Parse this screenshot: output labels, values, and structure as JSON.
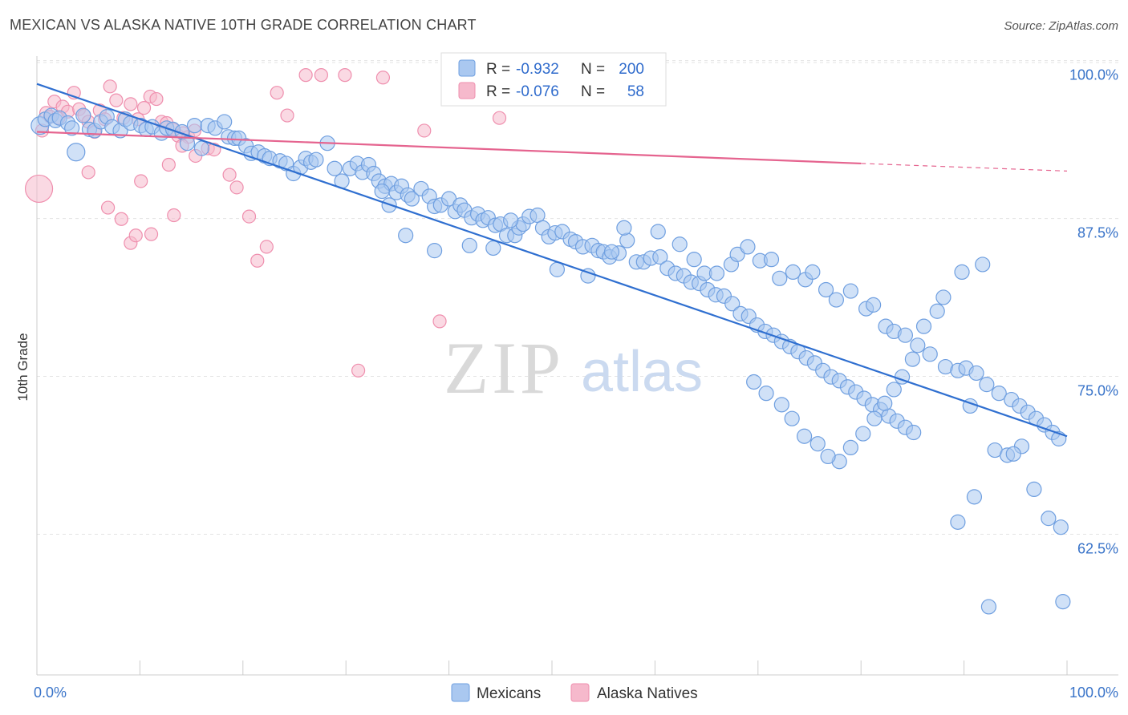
{
  "header": {
    "title": "MEXICAN VS ALASKA NATIVE 10TH GRADE CORRELATION CHART",
    "source": "Source: ZipAtlas.com"
  },
  "watermark": {
    "zip": "ZIP",
    "atlas": "atlas"
  },
  "legend": {
    "rows": [
      {
        "r_label": "R =",
        "r_value": "-0.932",
        "n_label": "N =",
        "n_value": "200",
        "color": "#aac8f0"
      },
      {
        "r_label": "R =",
        "r_value": "-0.076",
        "n_label": "N =",
        "n_value": "58",
        "color": "#f6b9cc"
      }
    ]
  },
  "bottom_legend": [
    {
      "label": "Mexicans",
      "color": "#aac8f0"
    },
    {
      "label": "Alaska Natives",
      "color": "#f6b9cc"
    }
  ],
  "chart_data": {
    "type": "scatter",
    "title": "MEXICAN VS ALASKA NATIVE 10TH GRADE CORRELATION CHART",
    "xlabel": "",
    "ylabel": "10th Grade",
    "xlim": [
      0,
      100
    ],
    "ylim": [
      52.5,
      101.5
    ],
    "x_tick_labels": [
      "0.0%",
      "100.0%"
    ],
    "y_ticks": [
      62.5,
      75.0,
      87.5,
      100.0
    ],
    "y_tick_labels": [
      "62.5%",
      "75.0%",
      "87.5%",
      "100.0%"
    ],
    "grid": true,
    "legend_position": "top-center",
    "colors": {
      "mexicans": "#6f9fe0",
      "mexicans_fill": "#aac8f0",
      "mexicans_line": "#2f6fd0",
      "alaska": "#ef8fae",
      "alaska_fill": "#f6b9cc",
      "alaska_line": "#e5648f"
    },
    "series": [
      {
        "name": "Mexicans",
        "r": -0.932,
        "n": 200,
        "trend": {
          "x": [
            0,
            100
          ],
          "y": [
            99.3,
            71.4
          ]
        },
        "points": [
          [
            0.3,
            96.0
          ],
          [
            0.8,
            96.5
          ],
          [
            1.4,
            96.8
          ],
          [
            1.8,
            96.4
          ],
          [
            2.2,
            96.6
          ],
          [
            3.0,
            96.2
          ],
          [
            3.4,
            95.8
          ],
          [
            3.8,
            93.9
          ],
          [
            4.5,
            96.8
          ],
          [
            5.1,
            95.7
          ],
          [
            5.6,
            95.6
          ],
          [
            6.2,
            96.3
          ],
          [
            6.8,
            96.7
          ],
          [
            7.3,
            95.9
          ],
          [
            8.1,
            95.6
          ],
          [
            8.6,
            96.5
          ],
          [
            9.1,
            96.2
          ],
          [
            10.1,
            96.0
          ],
          [
            10.6,
            95.7
          ],
          [
            11.2,
            95.9
          ],
          [
            12.1,
            95.4
          ],
          [
            12.6,
            95.8
          ],
          [
            13.2,
            95.7
          ],
          [
            14.1,
            95.5
          ],
          [
            14.6,
            94.6
          ],
          [
            15.3,
            96.0
          ],
          [
            16.0,
            94.2
          ],
          [
            16.6,
            96.0
          ],
          [
            17.3,
            95.8
          ],
          [
            18.2,
            96.3
          ],
          [
            18.6,
            95.1
          ],
          [
            19.2,
            95.0
          ],
          [
            19.6,
            95.0
          ],
          [
            20.3,
            94.4
          ],
          [
            20.8,
            93.8
          ],
          [
            21.5,
            93.9
          ],
          [
            22.1,
            93.6
          ],
          [
            22.6,
            93.4
          ],
          [
            23.6,
            93.2
          ],
          [
            24.2,
            93.0
          ],
          [
            24.9,
            92.2
          ],
          [
            25.6,
            92.7
          ],
          [
            26.1,
            93.4
          ],
          [
            26.6,
            93.1
          ],
          [
            27.1,
            93.3
          ],
          [
            28.2,
            94.6
          ],
          [
            28.9,
            92.6
          ],
          [
            29.6,
            91.6
          ],
          [
            30.4,
            92.6
          ],
          [
            31.1,
            93.0
          ],
          [
            31.6,
            92.3
          ],
          [
            32.2,
            92.9
          ],
          [
            32.7,
            92.2
          ],
          [
            33.2,
            91.6
          ],
          [
            33.8,
            91.2
          ],
          [
            34.4,
            91.4
          ],
          [
            34.9,
            90.7
          ],
          [
            35.4,
            91.2
          ],
          [
            36.0,
            90.5
          ],
          [
            36.4,
            90.2
          ],
          [
            37.3,
            91.0
          ],
          [
            38.1,
            90.4
          ],
          [
            38.6,
            89.6
          ],
          [
            39.2,
            89.7
          ],
          [
            40.0,
            90.2
          ],
          [
            40.6,
            89.2
          ],
          [
            41.1,
            89.7
          ],
          [
            41.5,
            89.3
          ],
          [
            42.2,
            88.7
          ],
          [
            42.8,
            89.0
          ],
          [
            43.3,
            88.5
          ],
          [
            43.8,
            88.7
          ],
          [
            44.5,
            88.1
          ],
          [
            45.0,
            88.2
          ],
          [
            45.6,
            87.3
          ],
          [
            46.4,
            87.3
          ],
          [
            46.8,
            87.9
          ],
          [
            47.2,
            88.2
          ],
          [
            47.8,
            88.8
          ],
          [
            48.6,
            88.9
          ],
          [
            49.1,
            87.9
          ],
          [
            49.7,
            87.2
          ],
          [
            50.3,
            87.5
          ],
          [
            51.0,
            87.6
          ],
          [
            51.8,
            87.0
          ],
          [
            52.3,
            86.8
          ],
          [
            53.0,
            86.4
          ],
          [
            53.9,
            86.5
          ],
          [
            54.5,
            86.1
          ],
          [
            55.0,
            86.0
          ],
          [
            55.6,
            85.6
          ],
          [
            56.5,
            85.9
          ],
          [
            57.3,
            86.9
          ],
          [
            58.2,
            85.2
          ],
          [
            58.9,
            85.2
          ],
          [
            59.6,
            85.5
          ],
          [
            60.5,
            85.6
          ],
          [
            61.2,
            84.7
          ],
          [
            62.0,
            84.3
          ],
          [
            62.8,
            84.1
          ],
          [
            63.5,
            83.6
          ],
          [
            64.3,
            83.5
          ],
          [
            65.1,
            83.0
          ],
          [
            65.9,
            82.6
          ],
          [
            66.7,
            82.5
          ],
          [
            67.5,
            81.9
          ],
          [
            68.3,
            81.1
          ],
          [
            69.1,
            80.9
          ],
          [
            69.9,
            80.2
          ],
          [
            70.7,
            79.7
          ],
          [
            71.5,
            79.4
          ],
          [
            72.3,
            78.9
          ],
          [
            73.1,
            78.5
          ],
          [
            73.9,
            78.1
          ],
          [
            74.7,
            77.6
          ],
          [
            75.5,
            77.2
          ],
          [
            76.3,
            76.6
          ],
          [
            77.1,
            76.1
          ],
          [
            77.9,
            75.8
          ],
          [
            78.7,
            75.3
          ],
          [
            79.5,
            74.9
          ],
          [
            80.3,
            74.4
          ],
          [
            81.1,
            73.9
          ],
          [
            81.9,
            73.5
          ],
          [
            82.7,
            73.0
          ],
          [
            83.5,
            72.6
          ],
          [
            84.3,
            72.1
          ],
          [
            85.1,
            71.7
          ],
          [
            33.5,
            90.8
          ],
          [
            34.2,
            89.7
          ],
          [
            35.8,
            87.3
          ],
          [
            38.6,
            86.1
          ],
          [
            42.0,
            86.5
          ],
          [
            44.3,
            86.3
          ],
          [
            46.0,
            88.5
          ],
          [
            50.5,
            84.6
          ],
          [
            53.5,
            84.1
          ],
          [
            55.8,
            86.0
          ],
          [
            57.0,
            87.9
          ],
          [
            60.3,
            87.6
          ],
          [
            62.4,
            86.6
          ],
          [
            63.8,
            85.4
          ],
          [
            64.8,
            84.3
          ],
          [
            66.0,
            84.3
          ],
          [
            67.4,
            85.0
          ],
          [
            68.0,
            85.8
          ],
          [
            69.0,
            86.4
          ],
          [
            70.2,
            85.3
          ],
          [
            71.3,
            85.4
          ],
          [
            72.1,
            83.9
          ],
          [
            73.4,
            84.4
          ],
          [
            74.6,
            83.8
          ],
          [
            75.3,
            84.4
          ],
          [
            76.6,
            83.0
          ],
          [
            77.6,
            82.2
          ],
          [
            79.0,
            82.9
          ],
          [
            80.5,
            81.5
          ],
          [
            81.2,
            81.8
          ],
          [
            82.4,
            80.1
          ],
          [
            83.2,
            79.7
          ],
          [
            84.3,
            79.4
          ],
          [
            85.5,
            78.6
          ],
          [
            86.7,
            77.9
          ],
          [
            88.2,
            76.9
          ],
          [
            89.4,
            76.6
          ],
          [
            90.2,
            76.8
          ],
          [
            91.2,
            76.4
          ],
          [
            92.2,
            75.5
          ],
          [
            93.4,
            74.8
          ],
          [
            94.6,
            74.3
          ],
          [
            95.4,
            73.8
          ],
          [
            96.2,
            73.3
          ],
          [
            97.0,
            72.8
          ],
          [
            97.8,
            72.3
          ],
          [
            98.6,
            71.7
          ],
          [
            99.2,
            71.2
          ],
          [
            89.8,
            84.4
          ],
          [
            91.8,
            85.0
          ],
          [
            88.0,
            82.4
          ],
          [
            87.4,
            81.3
          ],
          [
            86.1,
            80.1
          ],
          [
            85.0,
            77.5
          ],
          [
            84.0,
            76.1
          ],
          [
            83.2,
            75.1
          ],
          [
            82.3,
            74.0
          ],
          [
            81.3,
            72.8
          ],
          [
            80.2,
            71.6
          ],
          [
            79.0,
            70.5
          ],
          [
            77.9,
            69.4
          ],
          [
            76.8,
            69.8
          ],
          [
            75.8,
            70.8
          ],
          [
            74.5,
            71.4
          ],
          [
            73.3,
            72.8
          ],
          [
            72.3,
            73.9
          ],
          [
            70.8,
            74.8
          ],
          [
            69.6,
            75.7
          ],
          [
            93.0,
            70.3
          ],
          [
            94.2,
            69.9
          ],
          [
            95.6,
            70.6
          ],
          [
            96.8,
            67.2
          ],
          [
            98.2,
            64.9
          ],
          [
            99.4,
            64.2
          ],
          [
            91.0,
            66.6
          ],
          [
            89.4,
            64.6
          ],
          [
            92.4,
            57.9
          ],
          [
            99.6,
            58.3
          ],
          [
            94.8,
            70.0
          ],
          [
            90.6,
            73.8
          ]
        ]
      },
      {
        "name": "Alaska Natives",
        "r": -0.076,
        "n": 58,
        "trend": {
          "x": [
            0,
            80
          ],
          "y": [
            95.5,
            93.0
          ],
          "dashed_extension": {
            "x": [
              80,
              100
            ],
            "y": [
              93.0,
              92.4
            ]
          }
        },
        "points": [
          [
            0.2,
            91.0
          ],
          [
            0.5,
            95.6
          ],
          [
            0.9,
            97.0
          ],
          [
            1.3,
            96.7
          ],
          [
            1.7,
            97.9
          ],
          [
            2.1,
            96.6
          ],
          [
            2.5,
            97.5
          ],
          [
            3.0,
            97.1
          ],
          [
            3.6,
            98.6
          ],
          [
            4.1,
            97.3
          ],
          [
            4.6,
            96.8
          ],
          [
            5.0,
            96.3
          ],
          [
            5.6,
            95.5
          ],
          [
            6.1,
            97.2
          ],
          [
            6.6,
            96.5
          ],
          [
            7.1,
            99.1
          ],
          [
            7.7,
            98.0
          ],
          [
            8.4,
            96.6
          ],
          [
            9.1,
            97.7
          ],
          [
            9.8,
            96.5
          ],
          [
            10.4,
            97.4
          ],
          [
            11.0,
            98.3
          ],
          [
            11.6,
            98.1
          ],
          [
            12.1,
            96.3
          ],
          [
            12.6,
            96.2
          ],
          [
            13.2,
            95.7
          ],
          [
            13.7,
            95.2
          ],
          [
            14.2,
            95.4
          ],
          [
            14.7,
            95.1
          ],
          [
            15.3,
            95.6
          ],
          [
            5.0,
            92.3
          ],
          [
            6.9,
            89.5
          ],
          [
            8.2,
            88.6
          ],
          [
            9.1,
            86.7
          ],
          [
            9.6,
            87.3
          ],
          [
            10.1,
            91.6
          ],
          [
            11.1,
            87.4
          ],
          [
            12.8,
            92.9
          ],
          [
            13.3,
            88.9
          ],
          [
            14.1,
            94.4
          ],
          [
            15.4,
            93.6
          ],
          [
            16.6,
            94.2
          ],
          [
            17.2,
            94.1
          ],
          [
            18.7,
            92.1
          ],
          [
            19.4,
            91.1
          ],
          [
            20.6,
            88.8
          ],
          [
            21.4,
            85.3
          ],
          [
            22.3,
            86.4
          ],
          [
            23.3,
            98.6
          ],
          [
            24.3,
            96.8
          ],
          [
            26.1,
            100.0
          ],
          [
            27.6,
            100.0
          ],
          [
            29.9,
            100.0
          ],
          [
            31.2,
            76.6
          ],
          [
            33.6,
            99.8
          ],
          [
            37.6,
            95.6
          ],
          [
            39.1,
            80.5
          ],
          [
            44.9,
            96.6
          ]
        ]
      }
    ]
  }
}
